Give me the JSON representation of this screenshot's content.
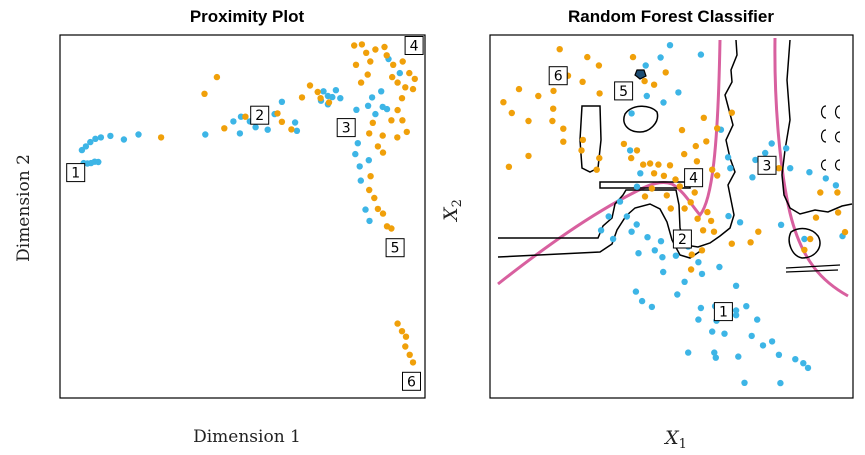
{
  "colors": {
    "blue": "#3db5e6",
    "orange": "#f0a00a",
    "bayes_boundary": "#d8609f",
    "rf_boundary": "#000000"
  },
  "chart_data": [
    {
      "type": "scatter",
      "title": "Proximity Plot",
      "xlabel": "Dimension 1",
      "ylabel": "Dimension 2",
      "xlim": [
        0,
        100
      ],
      "ylim": [
        0,
        100
      ],
      "series": [
        {
          "name": "class-blue",
          "color": "#3db5e6",
          "points": [
            [
              6.5,
              64.7
            ],
            [
              7.5,
              64.6
            ],
            [
              8.5,
              64.7
            ],
            [
              9.5,
              65.1
            ],
            [
              10.5,
              65
            ],
            [
              6,
              68.3
            ],
            [
              7.1,
              69.3
            ],
            [
              8.3,
              70.5
            ],
            [
              9.7,
              71.4
            ],
            [
              11.2,
              71.8
            ],
            [
              13.8,
              72.2
            ],
            [
              17.5,
              71.2
            ],
            [
              21.5,
              72.6
            ],
            [
              39.8,
              72.6
            ],
            [
              47.5,
              76.2
            ],
            [
              49.6,
              77.5
            ],
            [
              52,
              76.2
            ],
            [
              55.2,
              78.8
            ],
            [
              58.8,
              78.2
            ],
            [
              60.8,
              81.6
            ],
            [
              49.3,
              72.9
            ],
            [
              53.6,
              74.6
            ],
            [
              56.9,
              73.9
            ],
            [
              64.4,
              75.9
            ],
            [
              64.9,
              73.6
            ],
            [
              72.2,
              84.5
            ],
            [
              73.4,
              83.2
            ],
            [
              71.5,
              81.9
            ],
            [
              73.4,
              80.9
            ],
            [
              74.6,
              82.9
            ],
            [
              75.6,
              84.8
            ],
            [
              76.8,
              82.6
            ],
            [
              81.2,
              79.4
            ],
            [
              84.4,
              80.5
            ],
            [
              86.4,
              78.2
            ],
            [
              88.4,
              80.2
            ],
            [
              89.6,
              79.6
            ],
            [
              81.6,
              70.2
            ],
            [
              80.9,
              67.2
            ],
            [
              82.1,
              63.8
            ],
            [
              84.6,
              65.5
            ],
            [
              82.4,
              59.9
            ],
            [
              83.7,
              51.9
            ],
            [
              84.8,
              48.8
            ],
            [
              90,
              93.4
            ],
            [
              93.1,
              89.5
            ],
            [
              85.5,
              82.8
            ],
            [
              88,
              84.5
            ]
          ]
        },
        {
          "name": "class-orange",
          "color": "#f0a00a",
          "points": [
            [
              27.7,
              71.8
            ],
            [
              45,
              74.3
            ],
            [
              39.6,
              83.8
            ],
            [
              43,
              88.4
            ],
            [
              50.8,
              77.5
            ],
            [
              55.2,
              79.3
            ],
            [
              59.6,
              78.4
            ],
            [
              60.8,
              76.1
            ],
            [
              63.4,
              74
            ],
            [
              66.3,
              82.8
            ],
            [
              68.5,
              86.1
            ],
            [
              70.6,
              84.3
            ],
            [
              71.4,
              82.6
            ],
            [
              73.7,
              81.4
            ],
            [
              80.6,
              97.1
            ],
            [
              82.7,
              97.4
            ],
            [
              83.9,
              95.1
            ],
            [
              85,
              92.7
            ],
            [
              81.1,
              91.8
            ],
            [
              84.3,
              89.1
            ],
            [
              82.5,
              86.9
            ],
            [
              86.4,
              96
            ],
            [
              88.9,
              96.7
            ],
            [
              89.5,
              94.4
            ],
            [
              91.3,
              91.8
            ],
            [
              91,
              88.4
            ],
            [
              93.9,
              92.7
            ],
            [
              92.5,
              86.9
            ],
            [
              95.7,
              89.5
            ],
            [
              97.2,
              87.9
            ],
            [
              94.6,
              85.6
            ],
            [
              93.7,
              82.6
            ],
            [
              96.7,
              85.1
            ],
            [
              92.5,
              79.3
            ],
            [
              90.8,
              76.5
            ],
            [
              93.8,
              76.5
            ],
            [
              95,
              73.3
            ],
            [
              88.4,
              72.3
            ],
            [
              92.4,
              71.8
            ],
            [
              85.7,
              75.8
            ],
            [
              84.7,
              72.9
            ],
            [
              87.1,
              69.3
            ],
            [
              88.5,
              67.6
            ],
            [
              85.1,
              61.1
            ],
            [
              84.7,
              57.3
            ],
            [
              86.1,
              55.1
            ],
            [
              87.1,
              52.1
            ],
            [
              88.5,
              50.8
            ],
            [
              89.6,
              47.3
            ],
            [
              90.8,
              46.7
            ],
            [
              92.5,
              20.5
            ],
            [
              93.7,
              18.4
            ],
            [
              94.8,
              16.9
            ],
            [
              94.6,
              14.2
            ],
            [
              95.8,
              11.9
            ],
            [
              96.7,
              9.8
            ]
          ]
        }
      ],
      "annotations": [
        {
          "label": "1",
          "x": 4.3,
          "y": 62.1
        },
        {
          "label": "2",
          "x": 54.7,
          "y": 77.9
        },
        {
          "label": "3",
          "x": 78.4,
          "y": 74.5
        },
        {
          "label": "4",
          "x": 97,
          "y": 97.1
        },
        {
          "label": "5",
          "x": 91.8,
          "y": 41.4
        },
        {
          "label": "6",
          "x": 96.3,
          "y": 4.6
        }
      ]
    },
    {
      "type": "scatter",
      "title": "Random Forest Classifier",
      "xlabel": "X₁",
      "ylabel": "X₂",
      "xlim": [
        0,
        100
      ],
      "ylim": [
        0,
        100
      ],
      "series": [
        {
          "name": "class-blue",
          "color": "#3db5e6",
          "points": [
            [
              42.9,
              91.6
            ],
            [
              47,
              93.8
            ],
            [
              49.6,
              97.2
            ],
            [
              58.1,
              94.6
            ],
            [
              43.2,
              83.2
            ],
            [
              47.8,
              81.4
            ],
            [
              51.9,
              84.2
            ],
            [
              39,
              78.4
            ],
            [
              38.6,
              68.2
            ],
            [
              41.4,
              61.9
            ],
            [
              40.5,
              58.2
            ],
            [
              35.8,
              54.1
            ],
            [
              37.7,
              50
            ],
            [
              32.7,
              50
            ],
            [
              30.6,
              46.2
            ],
            [
              33.9,
              43.8
            ],
            [
              39,
              45.8
            ],
            [
              40.4,
              47.8
            ],
            [
              43.4,
              44.3
            ],
            [
              47.1,
              43.2
            ],
            [
              40.9,
              39.9
            ],
            [
              45.4,
              40.7
            ],
            [
              47.5,
              38.8
            ],
            [
              51.2,
              39.2
            ],
            [
              54.6,
              41.7
            ],
            [
              57.4,
              37.4
            ],
            [
              58.4,
              34.2
            ],
            [
              47.7,
              34.7
            ],
            [
              53.6,
              32
            ],
            [
              51.6,
              28.5
            ],
            [
              40.2,
              29.3
            ],
            [
              41.9,
              26.7
            ],
            [
              44.6,
              25.1
            ],
            [
              63.2,
              36.1
            ],
            [
              67.8,
              30.9
            ],
            [
              58.1,
              24.8
            ],
            [
              62,
              25.3
            ],
            [
              65.6,
              24.8
            ],
            [
              67.8,
              24.1
            ],
            [
              70.6,
              25.3
            ],
            [
              57.4,
              21.6
            ],
            [
              62.4,
              21.3
            ],
            [
              67.8,
              22.8
            ],
            [
              73.6,
              21.6
            ],
            [
              61.2,
              18.3
            ],
            [
              64.6,
              17.7
            ],
            [
              72.1,
              17.1
            ],
            [
              75.2,
              14.5
            ],
            [
              77.7,
              15.6
            ],
            [
              54.6,
              12.5
            ],
            [
              61.8,
              12.5
            ],
            [
              68.4,
              11.4
            ],
            [
              79.6,
              11.9
            ],
            [
              84.1,
              10.7
            ],
            [
              86.3,
              9.6
            ],
            [
              87.6,
              8.3
            ],
            [
              62.2,
              11.1
            ],
            [
              70.1,
              4.2
            ],
            [
              80,
              4.1
            ],
            [
              63.6,
              73.9
            ],
            [
              65.6,
              66.3
            ],
            [
              66.2,
              63.3
            ],
            [
              72.3,
              60.8
            ],
            [
              73.1,
              65.6
            ],
            [
              75.8,
              67.5
            ],
            [
              77.6,
              70.1
            ],
            [
              81.6,
              68.8
            ],
            [
              82.7,
              63.3
            ],
            [
              88,
              62.2
            ],
            [
              92.5,
              60.5
            ],
            [
              95.3,
              58.6
            ],
            [
              65.7,
              50.1
            ],
            [
              68.9,
              48.4
            ],
            [
              80.2,
              47.7
            ],
            [
              86.6,
              43.8
            ],
            [
              97.1,
              44.6
            ]
          ]
        },
        {
          "name": "class-orange",
          "color": "#f0a00a",
          "points": [
            [
              19.2,
              96.1
            ],
            [
              26.8,
              93.9
            ],
            [
              30,
              91.6
            ],
            [
              21.5,
              88.8
            ],
            [
              25.5,
              87.1
            ],
            [
              8,
              85.1
            ],
            [
              13.3,
              83.2
            ],
            [
              17.5,
              84.6
            ],
            [
              3.7,
              81.5
            ],
            [
              6,
              78.5
            ],
            [
              10.6,
              76.3
            ],
            [
              17.4,
              79.7
            ],
            [
              17.2,
              76.3
            ],
            [
              20.2,
              74.2
            ],
            [
              20.2,
              70.6
            ],
            [
              10.6,
              66.7
            ],
            [
              5.2,
              63.7
            ],
            [
              25.6,
              71.1
            ],
            [
              25.2,
              68.2
            ],
            [
              30.1,
              66.1
            ],
            [
              29.4,
              62.9
            ],
            [
              36.9,
              70
            ],
            [
              40.5,
              68.2
            ],
            [
              38.9,
              66.1
            ],
            [
              42.2,
              64.3
            ],
            [
              44.1,
              64.6
            ],
            [
              46.4,
              64.3
            ],
            [
              45.2,
              61.9
            ],
            [
              47.9,
              61.2
            ],
            [
              49.6,
              64.1
            ],
            [
              51.1,
              60.2
            ],
            [
              52.3,
              58.3
            ],
            [
              44.6,
              57.7
            ],
            [
              42.7,
              55.5
            ],
            [
              48.7,
              55.8
            ],
            [
              49.8,
              52.2
            ],
            [
              53.6,
              52.2
            ],
            [
              55.3,
              53.9
            ],
            [
              56.4,
              56.6
            ],
            [
              57.2,
              49.4
            ],
            [
              59.9,
              51.2
            ],
            [
              60.9,
              48.8
            ],
            [
              58.7,
              46.2
            ],
            [
              61.7,
              45.8
            ],
            [
              58.4,
              40.7
            ],
            [
              55.6,
              39.5
            ],
            [
              51.6,
              43.3
            ],
            [
              55.4,
              35.4
            ],
            [
              66.6,
              42.5
            ],
            [
              71.8,
              42.9
            ],
            [
              73.9,
              45.8
            ],
            [
              61.2,
              62.9
            ],
            [
              62.6,
              61.3
            ],
            [
              57,
              65.2
            ],
            [
              53.5,
              67.2
            ],
            [
              56.7,
              69.4
            ],
            [
              59.6,
              70.7
            ],
            [
              62.6,
              74.3
            ],
            [
              58.9,
              77.2
            ],
            [
              66.6,
              78.6
            ],
            [
              52.9,
              73.8
            ],
            [
              30.2,
              83.9
            ],
            [
              42.6,
              87.3
            ],
            [
              45.2,
              86.3
            ],
            [
              48.4,
              89.7
            ],
            [
              39.4,
              93.9
            ],
            [
              79.6,
              63.3
            ],
            [
              91,
              56.6
            ],
            [
              95.7,
              56.6
            ],
            [
              89.8,
              49.7
            ],
            [
              95.9,
              51.1
            ],
            [
              97.8,
              45.7
            ],
            [
              88.2,
              43.8
            ],
            [
              86.6,
              40.8
            ]
          ]
        }
      ],
      "annotations": [
        {
          "label": "1",
          "x": 64.3,
          "y": 23.8
        },
        {
          "label": "2",
          "x": 53,
          "y": 43.8
        },
        {
          "label": "3",
          "x": 76.3,
          "y": 64.1
        },
        {
          "label": "4",
          "x": 56.1,
          "y": 60.7
        },
        {
          "label": "5",
          "x": 36.8,
          "y": 84.6
        },
        {
          "label": "6",
          "x": 18.8,
          "y": 88.8
        }
      ]
    }
  ]
}
